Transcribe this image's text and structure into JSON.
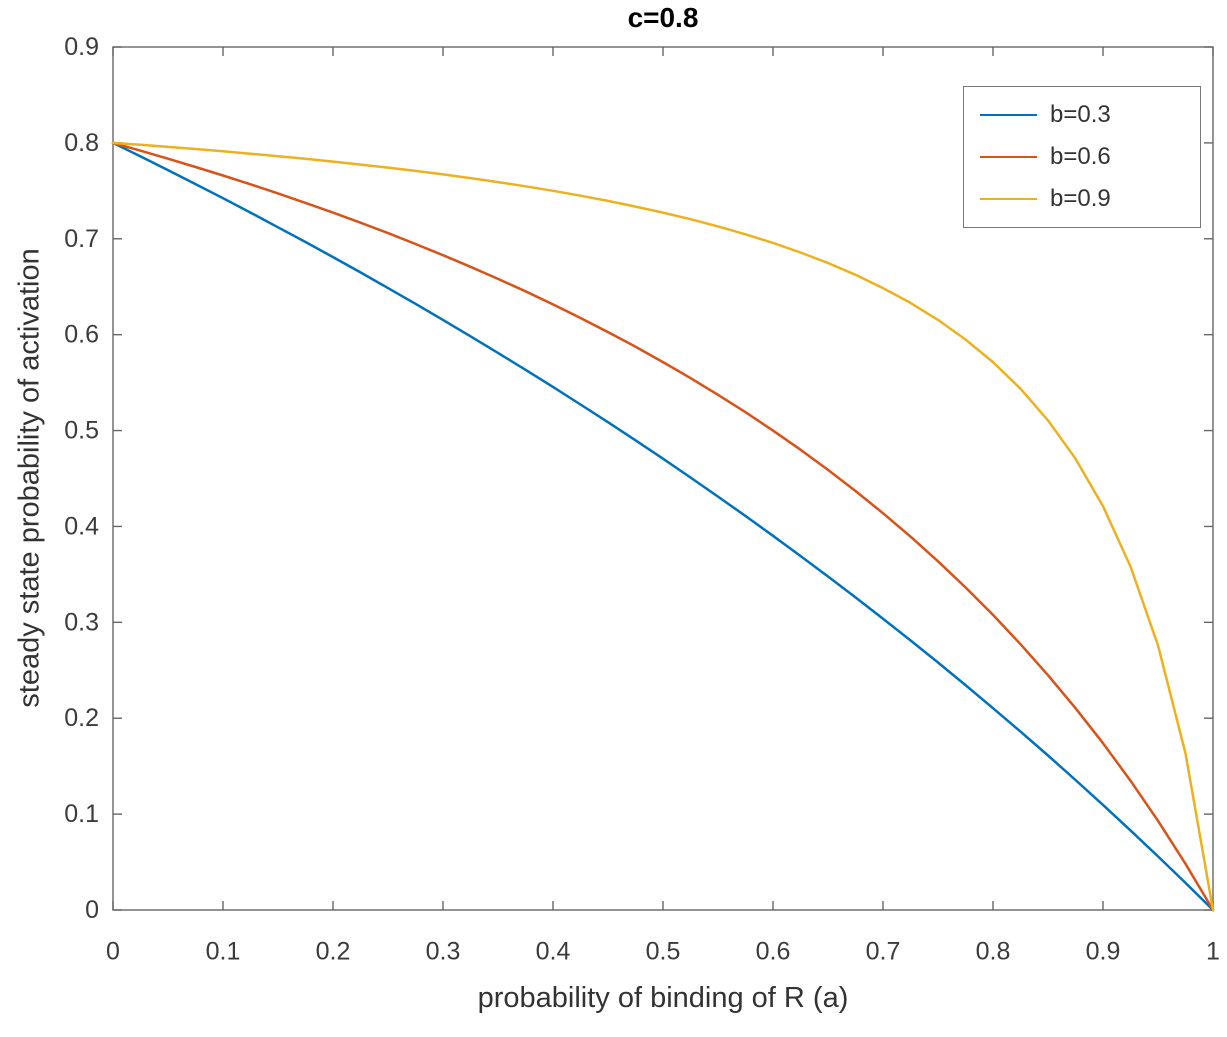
{
  "chart_data": {
    "type": "line",
    "title": "c=0.8",
    "xlabel": "probability of binding of R (a)",
    "ylabel": "steady state probability of activation",
    "xlim": [
      0,
      1
    ],
    "ylim": [
      0,
      0.9
    ],
    "grid": false,
    "legend_position": "northeast",
    "xticks": [
      0,
      0.1,
      0.2,
      0.3,
      0.4,
      0.5,
      0.6,
      0.7,
      0.8,
      0.9,
      1
    ],
    "xtick_labels": [
      "0",
      "0.1",
      "0.2",
      "0.3",
      "0.4",
      "0.5",
      "0.6",
      "0.7",
      "0.8",
      "0.9",
      "1"
    ],
    "yticks": [
      0,
      0.1,
      0.2,
      0.3,
      0.4,
      0.5,
      0.6,
      0.7,
      0.8,
      0.9
    ],
    "ytick_labels": [
      "0",
      "0.1",
      "0.2",
      "0.3",
      "0.4",
      "0.5",
      "0.6",
      "0.7",
      "0.8",
      "0.9"
    ],
    "x": [
      0,
      0.025,
      0.05,
      0.075,
      0.1,
      0.125,
      0.15,
      0.175,
      0.2,
      0.225,
      0.25,
      0.275,
      0.3,
      0.325,
      0.35,
      0.375,
      0.4,
      0.425,
      0.45,
      0.475,
      0.5,
      0.525,
      0.55,
      0.575,
      0.6,
      0.625,
      0.65,
      0.675,
      0.7,
      0.725,
      0.75,
      0.775,
      0.8,
      0.825,
      0.85,
      0.875,
      0.9,
      0.925,
      0.95,
      0.975,
      1
    ],
    "series": [
      {
        "name": "b=0.3",
        "color": "#0072BD",
        "values": [
          0.8,
          0.7859,
          0.7716,
          0.757,
          0.7423,
          0.7273,
          0.712,
          0.6966,
          0.6809,
          0.6649,
          0.6486,
          0.6322,
          0.6154,
          0.5983,
          0.581,
          0.5634,
          0.5455,
          0.5272,
          0.5087,
          0.4898,
          0.4706,
          0.451,
          0.4311,
          0.4109,
          0.3902,
          0.3692,
          0.3478,
          0.326,
          0.3038,
          0.2812,
          0.2581,
          0.2345,
          0.2105,
          0.186,
          0.1611,
          0.1356,
          0.1096,
          0.083,
          0.0559,
          0.0283,
          0
        ]
      },
      {
        "name": "b=0.6",
        "color": "#D95319",
        "values": [
          0.8,
          0.7919,
          0.7835,
          0.7749,
          0.766,
          0.7568,
          0.7473,
          0.7374,
          0.7273,
          0.7168,
          0.7059,
          0.6946,
          0.6829,
          0.6708,
          0.6582,
          0.6452,
          0.6316,
          0.6174,
          0.6027,
          0.5874,
          0.5714,
          0.5547,
          0.5373,
          0.5191,
          0.5,
          0.48,
          0.459,
          0.437,
          0.4138,
          0.3894,
          0.3636,
          0.3364,
          0.3077,
          0.2772,
          0.2449,
          0.2105,
          0.1739,
          0.1348,
          0.093,
          0.0482,
          0
        ]
      },
      {
        "name": "b=0.9",
        "color": "#EDB120",
        "values": [
          0.8,
          0.798,
          0.7958,
          0.7936,
          0.7912,
          0.7887,
          0.7861,
          0.7834,
          0.7805,
          0.7774,
          0.7742,
          0.7708,
          0.7671,
          0.7633,
          0.7591,
          0.7547,
          0.75,
          0.7449,
          0.7395,
          0.7336,
          0.7273,
          0.7204,
          0.7129,
          0.7047,
          0.6957,
          0.6857,
          0.6747,
          0.6624,
          0.6486,
          0.6331,
          0.6154,
          0.595,
          0.5714,
          0.5437,
          0.5106,
          0.4706,
          0.4211,
          0.3582,
          0.2759,
          0.1633,
          0
        ]
      }
    ],
    "axis_color": "#666666",
    "tick_label_color": "#3b3b3b"
  }
}
